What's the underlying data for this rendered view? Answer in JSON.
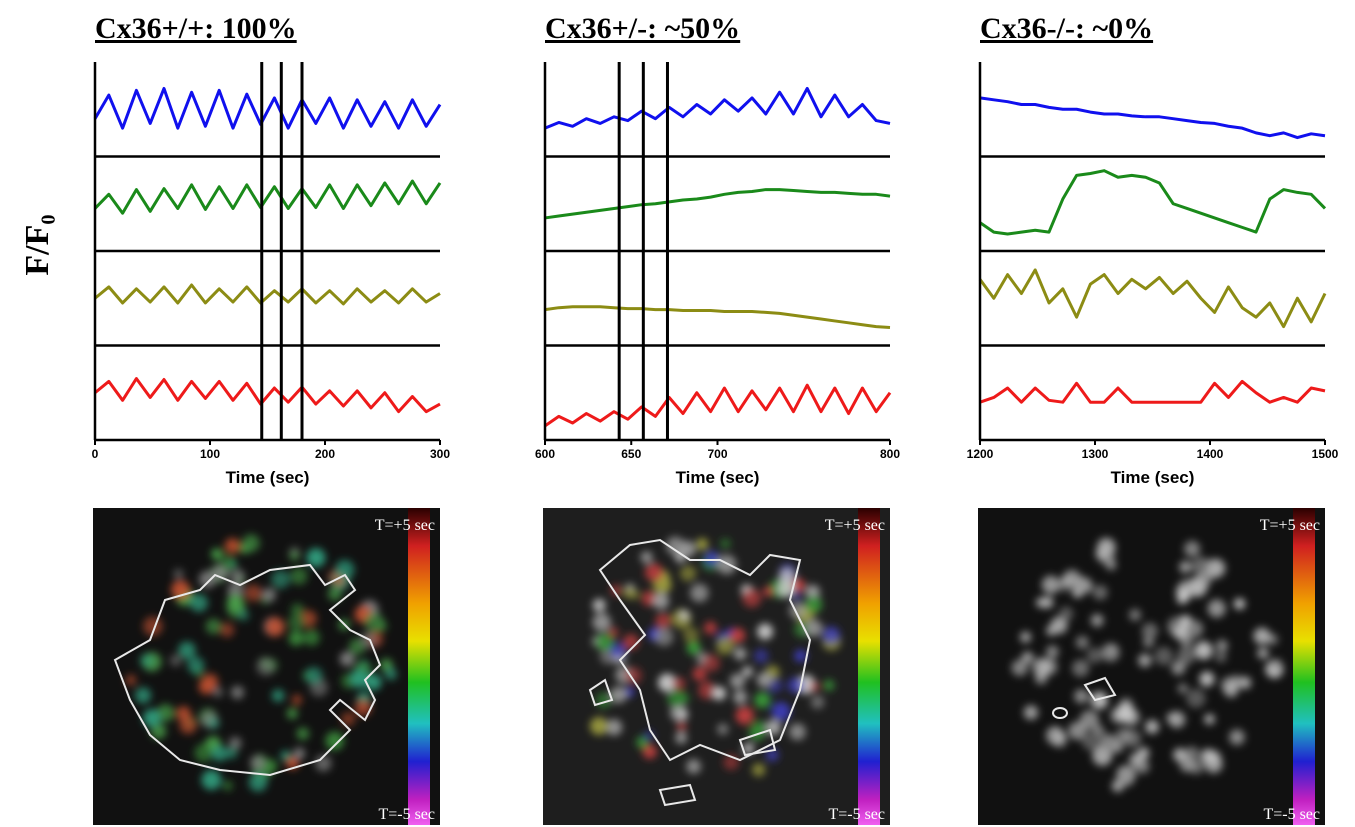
{
  "shared_ylabel": "F/F₀",
  "chart_data": [
    {
      "type": "line",
      "title": "Cx36+/+: 100%",
      "xlabel": "Time (sec)",
      "xlim": [
        0,
        300
      ],
      "xticks": [
        0,
        100,
        200,
        300
      ],
      "ylim": [
        0,
        1
      ],
      "markers": [
        145,
        162,
        180
      ],
      "x": [
        0,
        12,
        24,
        36,
        48,
        60,
        72,
        84,
        96,
        108,
        120,
        132,
        144,
        156,
        168,
        180,
        192,
        204,
        216,
        228,
        240,
        252,
        264,
        276,
        288,
        300
      ],
      "series": [
        {
          "color": "#1010ee",
          "values": [
            0.4,
            0.65,
            0.3,
            0.7,
            0.35,
            0.72,
            0.3,
            0.68,
            0.32,
            0.7,
            0.3,
            0.66,
            0.34,
            0.62,
            0.3,
            0.6,
            0.35,
            0.62,
            0.3,
            0.6,
            0.32,
            0.58,
            0.3,
            0.6,
            0.32,
            0.55
          ]
        },
        {
          "color": "#1a8a1a",
          "values": [
            0.45,
            0.6,
            0.4,
            0.65,
            0.42,
            0.66,
            0.45,
            0.7,
            0.44,
            0.68,
            0.45,
            0.7,
            0.46,
            0.68,
            0.45,
            0.66,
            0.46,
            0.7,
            0.45,
            0.7,
            0.48,
            0.72,
            0.5,
            0.74,
            0.5,
            0.72
          ]
        },
        {
          "color": "#8c8c14",
          "values": [
            0.5,
            0.62,
            0.45,
            0.6,
            0.46,
            0.62,
            0.45,
            0.64,
            0.45,
            0.6,
            0.46,
            0.62,
            0.45,
            0.58,
            0.46,
            0.6,
            0.45,
            0.58,
            0.44,
            0.6,
            0.46,
            0.58,
            0.45,
            0.6,
            0.46,
            0.55
          ]
        },
        {
          "color": "#ee1a1a",
          "values": [
            0.5,
            0.62,
            0.42,
            0.65,
            0.45,
            0.64,
            0.42,
            0.62,
            0.44,
            0.62,
            0.42,
            0.6,
            0.38,
            0.55,
            0.4,
            0.56,
            0.38,
            0.52,
            0.36,
            0.52,
            0.34,
            0.5,
            0.3,
            0.46,
            0.3,
            0.38
          ]
        }
      ],
      "image": {
        "top_label": "T=+5 sec",
        "bottom_label": "T=-5 sec"
      }
    },
    {
      "type": "line",
      "title": "Cx36+/-: ~50%",
      "xlabel": "Time (sec)",
      "xlim": [
        600,
        800
      ],
      "xticks": [
        600,
        650,
        700,
        800
      ],
      "ylim": [
        0,
        1
      ],
      "markers": [
        643,
        657,
        671
      ],
      "x": [
        600,
        608,
        616,
        624,
        632,
        640,
        648,
        656,
        664,
        672,
        680,
        688,
        696,
        704,
        712,
        720,
        728,
        736,
        744,
        752,
        760,
        768,
        776,
        784,
        792,
        800
      ],
      "series": [
        {
          "color": "#1010ee",
          "values": [
            0.3,
            0.36,
            0.32,
            0.4,
            0.35,
            0.42,
            0.38,
            0.48,
            0.4,
            0.52,
            0.42,
            0.55,
            0.45,
            0.6,
            0.48,
            0.62,
            0.45,
            0.68,
            0.45,
            0.72,
            0.42,
            0.65,
            0.42,
            0.55,
            0.38,
            0.35
          ]
        },
        {
          "color": "#1a8a1a",
          "values": [
            0.35,
            0.37,
            0.39,
            0.41,
            0.43,
            0.45,
            0.47,
            0.49,
            0.5,
            0.52,
            0.54,
            0.55,
            0.57,
            0.6,
            0.62,
            0.63,
            0.65,
            0.65,
            0.64,
            0.63,
            0.62,
            0.62,
            0.61,
            0.6,
            0.6,
            0.58
          ]
        },
        {
          "color": "#8c8c14",
          "values": [
            0.38,
            0.4,
            0.41,
            0.41,
            0.41,
            0.4,
            0.39,
            0.39,
            0.38,
            0.38,
            0.37,
            0.37,
            0.37,
            0.36,
            0.36,
            0.36,
            0.35,
            0.34,
            0.32,
            0.3,
            0.28,
            0.26,
            0.24,
            0.22,
            0.2,
            0.19
          ]
        },
        {
          "color": "#ee1a1a",
          "values": [
            0.15,
            0.25,
            0.18,
            0.28,
            0.2,
            0.3,
            0.22,
            0.35,
            0.25,
            0.45,
            0.28,
            0.5,
            0.3,
            0.55,
            0.3,
            0.52,
            0.32,
            0.55,
            0.3,
            0.58,
            0.3,
            0.55,
            0.28,
            0.55,
            0.3,
            0.5
          ]
        }
      ],
      "image": {
        "top_label": "T=+5 sec",
        "bottom_label": "T=-5 sec"
      }
    },
    {
      "type": "line",
      "title": "Cx36-/-: ~0%",
      "xlabel": "Time (sec)",
      "xlim": [
        1200,
        1500
      ],
      "xticks": [
        1200,
        1300,
        1400,
        1500
      ],
      "ylim": [
        0,
        1
      ],
      "x": [
        1200,
        1212,
        1224,
        1236,
        1248,
        1260,
        1272,
        1284,
        1296,
        1308,
        1320,
        1332,
        1344,
        1356,
        1368,
        1380,
        1392,
        1404,
        1416,
        1428,
        1440,
        1452,
        1464,
        1476,
        1488,
        1500
      ],
      "series": [
        {
          "color": "#1010ee",
          "values": [
            0.62,
            0.6,
            0.58,
            0.55,
            0.55,
            0.52,
            0.5,
            0.5,
            0.47,
            0.45,
            0.45,
            0.43,
            0.42,
            0.42,
            0.4,
            0.38,
            0.36,
            0.35,
            0.32,
            0.3,
            0.25,
            0.22,
            0.25,
            0.2,
            0.24,
            0.22
          ]
        },
        {
          "color": "#1a8a1a",
          "values": [
            0.3,
            0.2,
            0.18,
            0.2,
            0.22,
            0.2,
            0.55,
            0.8,
            0.82,
            0.85,
            0.78,
            0.8,
            0.78,
            0.72,
            0.5,
            0.45,
            0.4,
            0.35,
            0.3,
            0.25,
            0.2,
            0.55,
            0.65,
            0.62,
            0.6,
            0.45
          ]
        },
        {
          "color": "#8c8c14",
          "values": [
            0.7,
            0.5,
            0.75,
            0.55,
            0.8,
            0.45,
            0.6,
            0.3,
            0.65,
            0.75,
            0.55,
            0.7,
            0.6,
            0.72,
            0.55,
            0.68,
            0.5,
            0.35,
            0.62,
            0.4,
            0.3,
            0.45,
            0.2,
            0.5,
            0.25,
            0.55
          ]
        },
        {
          "color": "#ee1a1a",
          "values": [
            0.4,
            0.45,
            0.55,
            0.4,
            0.55,
            0.42,
            0.4,
            0.6,
            0.4,
            0.4,
            0.55,
            0.4,
            0.4,
            0.4,
            0.4,
            0.4,
            0.4,
            0.6,
            0.45,
            0.62,
            0.5,
            0.4,
            0.45,
            0.4,
            0.55,
            0.52
          ]
        }
      ],
      "image": {
        "top_label": "T=+5 sec",
        "bottom_label": "T=-5 sec"
      }
    }
  ]
}
